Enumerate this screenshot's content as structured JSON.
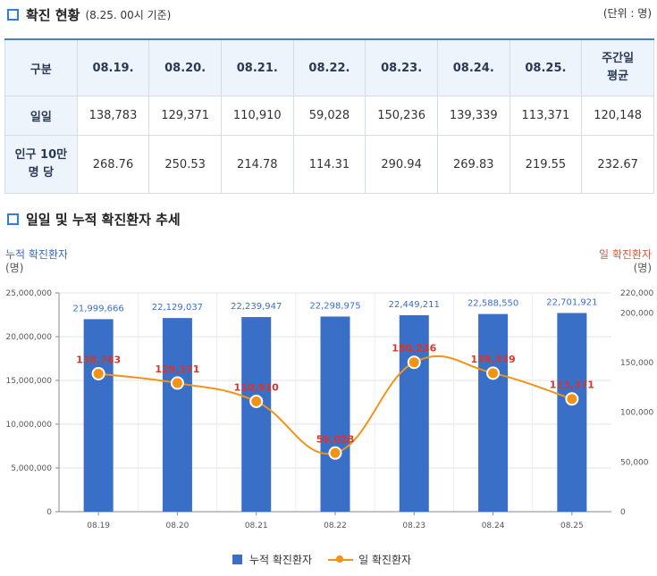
{
  "status_section": {
    "title": "확진 현황",
    "subtitle": "(8.25. 00시 기준)",
    "unit": "(단위 : 명)"
  },
  "table": {
    "corner": "구분",
    "columns": [
      "08.19.",
      "08.20.",
      "08.21.",
      "08.22.",
      "08.23.",
      "08.24.",
      "08.25."
    ],
    "avg_header_line1": "주간일",
    "avg_header_line2": "평균",
    "row1_label": "일일",
    "row1_values": [
      "138,783",
      "129,371",
      "110,910",
      "59,028",
      "150,236",
      "139,339",
      "113,371",
      "120,148"
    ],
    "row2_label_line1": "인구 10만",
    "row2_label_line2": "명 당",
    "row2_values": [
      "268.76",
      "250.53",
      "214.78",
      "114.31",
      "290.94",
      "269.83",
      "219.55",
      "232.67"
    ]
  },
  "trend_section": {
    "title": "일일 및 누적 확진환자 추세"
  },
  "chart_data": {
    "type": "bar",
    "title": "일일 및 누적 확진환자 추세",
    "categories": [
      "08.19",
      "08.20",
      "08.21",
      "08.22",
      "08.23",
      "08.24",
      "08.25"
    ],
    "series": [
      {
        "name": "누적 확진환자",
        "type": "bar",
        "axis": "left",
        "color": "#3a6fc8",
        "values": [
          21999666,
          22129037,
          22239947,
          22298975,
          22449211,
          22588550,
          22701921
        ],
        "labels": [
          "21,999,666",
          "22,129,037",
          "22,239,947",
          "22,298,975",
          "22,449,211",
          "22,588,550",
          "22,701,921"
        ]
      },
      {
        "name": "일 확진환자",
        "type": "line",
        "axis": "right",
        "color": "#f39314",
        "values": [
          138783,
          129371,
          110910,
          59028,
          150236,
          139339,
          113371
        ],
        "labels": [
          "138,783",
          "129,371",
          "110,910",
          "59,028",
          "150,236",
          "139,339",
          "113,371"
        ]
      }
    ],
    "left_axis": {
      "title": "누적 확진환자",
      "unit": "(명)",
      "ylim": [
        0,
        25000000
      ],
      "ticks": [
        0,
        5000000,
        10000000,
        15000000,
        20000000,
        25000000
      ],
      "tick_labels": [
        "0",
        "5,000,000",
        "10,000,000",
        "15,000,000",
        "20,000,000",
        "25,000,000"
      ]
    },
    "right_axis": {
      "title": "일 확진환자",
      "unit": "(명)",
      "ylim": [
        0,
        220000
      ],
      "ticks": [
        0,
        50000,
        100000,
        150000,
        200000,
        220000
      ],
      "tick_labels": [
        "0",
        "50,000",
        "100,000",
        "150,000",
        "200,000",
        "220,000"
      ]
    },
    "legend": [
      "누적 확진환자",
      "일 확진환자"
    ],
    "grid": true,
    "label_colors": {
      "bar_label": "#3a6fc8",
      "line_label": "#d8352c"
    }
  }
}
